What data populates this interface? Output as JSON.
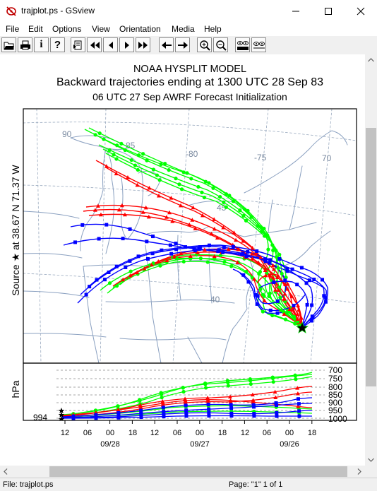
{
  "window": {
    "title": "trajplot.ps - GSview",
    "minimize_icon": "minimize-icon",
    "maximize_icon": "maximize-icon",
    "close_icon": "close-icon"
  },
  "menu": [
    "File",
    "Edit",
    "Options",
    "View",
    "Orientation",
    "Media",
    "Help"
  ],
  "toolbar": [
    "open-file-icon",
    "print-icon",
    "info-icon",
    "help-icon",
    "goto-page-icon",
    "first-page-icon",
    "previous-page-icon",
    "next-page-icon",
    "last-page-icon",
    "back-icon",
    "forward-icon",
    "zoom-in-icon",
    "zoom-out-icon",
    "text-extract-icon",
    "magnify-view-icon"
  ],
  "plot": {
    "title1": "NOAA HYSPLIT MODEL",
    "title2": "Backward trajectories ending at 1300 UTC 28 Sep 83",
    "title3": "06 UTC 27 Sep    AWRF  Forecast Initialization",
    "source_label": "Source ★ at   38.67 N    71.37 W",
    "lon_labels": [
      "90",
      "85",
      "-80",
      "-75",
      "70"
    ],
    "lat_labels": [
      "45",
      "40"
    ],
    "colors": {
      "red": "#ff0000",
      "blue": "#0000ff",
      "green": "#00ff00",
      "map": "#8aa0c0",
      "grid": "#9aaabf"
    }
  },
  "profile": {
    "ylabel": "hPa",
    "start_value": "994",
    "levels": [
      "700",
      "750",
      "800",
      "850",
      "900",
      "950",
      "1000"
    ],
    "time_ticks": [
      "12",
      "06",
      "00",
      "18",
      "12",
      "06",
      "00",
      "18",
      "12",
      "06",
      "00",
      "18"
    ],
    "dates": [
      "09/28",
      "09/27",
      "09/26"
    ]
  },
  "status": {
    "file": "File: trajplot.ps",
    "page": "Page: \"1\"  1 of 1"
  }
}
